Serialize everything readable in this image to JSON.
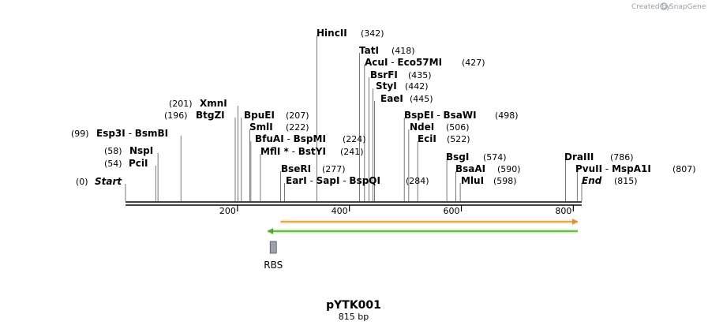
{
  "watermark": {
    "text": "Created by",
    "brand": "SnapGene"
  },
  "map": {
    "name": "pYTK001",
    "length_label": "815 bp",
    "length": 815,
    "ruler_ticks": [
      "200",
      "400",
      "600",
      "800"
    ],
    "tick_values": [
      200,
      400,
      600,
      800
    ]
  },
  "sites": [
    {
      "id": "start",
      "pos": 0,
      "pos_label": "(0)",
      "parts": [
        "Start"
      ],
      "italic": true
    },
    {
      "id": "pcii",
      "pos": 54,
      "pos_label": "(54)",
      "parts": [
        "PciI"
      ]
    },
    {
      "id": "nspi",
      "pos": 58,
      "pos_label": "(58)",
      "parts": [
        "NspI"
      ]
    },
    {
      "id": "esp3i",
      "pos": 99,
      "pos_label": "(99)",
      "parts": [
        "Esp3I",
        "BsmBI"
      ]
    },
    {
      "id": "btgzi",
      "pos": 196,
      "pos_label": "(196)",
      "parts": [
        "BtgZI"
      ]
    },
    {
      "id": "xmni",
      "pos": 201,
      "pos_label": "(201)",
      "parts": [
        "XmnI"
      ]
    },
    {
      "id": "bpuei",
      "pos": 207,
      "pos_label": "(207)",
      "parts": [
        "BpuEI"
      ]
    },
    {
      "id": "smli",
      "pos": 222,
      "pos_label": "(222)",
      "parts": [
        "SmlI"
      ]
    },
    {
      "id": "bfuai",
      "pos": 224,
      "pos_label": "(224)",
      "parts": [
        "BfuAI",
        "BspMI"
      ]
    },
    {
      "id": "mfli",
      "pos": 241,
      "pos_label": "(241)",
      "parts": [
        "MflI *",
        "BstYI"
      ]
    },
    {
      "id": "bseri",
      "pos": 277,
      "pos_label": "(277)",
      "parts": [
        "BseRI"
      ]
    },
    {
      "id": "eari",
      "pos": 284,
      "pos_label": "(284)",
      "parts": [
        "EarI",
        "SapI",
        "BspQI"
      ]
    },
    {
      "id": "hincii",
      "pos": 342,
      "pos_label": "(342)",
      "parts": [
        "HincII"
      ]
    },
    {
      "id": "tati",
      "pos": 418,
      "pos_label": "(418)",
      "parts": [
        "TatI"
      ]
    },
    {
      "id": "acui",
      "pos": 427,
      "pos_label": "(427)",
      "parts": [
        "AcuI",
        "Eco57MI"
      ]
    },
    {
      "id": "bsrfi",
      "pos": 435,
      "pos_label": "(435)",
      "parts": [
        "BsrFI"
      ]
    },
    {
      "id": "styi",
      "pos": 442,
      "pos_label": "(442)",
      "parts": [
        "StyI"
      ]
    },
    {
      "id": "eaei",
      "pos": 445,
      "pos_label": "(445)",
      "parts": [
        "EaeI"
      ]
    },
    {
      "id": "bspei",
      "pos": 498,
      "pos_label": "(498)",
      "parts": [
        "BspEI",
        "BsaWI"
      ]
    },
    {
      "id": "ndei",
      "pos": 506,
      "pos_label": "(506)",
      "parts": [
        "NdeI"
      ]
    },
    {
      "id": "ecii",
      "pos": 522,
      "pos_label": "(522)",
      "parts": [
        "EciI"
      ]
    },
    {
      "id": "bsgi",
      "pos": 574,
      "pos_label": "(574)",
      "parts": [
        "BsgI"
      ]
    },
    {
      "id": "bsaai",
      "pos": 590,
      "pos_label": "(590)",
      "parts": [
        "BsaAI"
      ]
    },
    {
      "id": "mlui",
      "pos": 598,
      "pos_label": "(598)",
      "parts": [
        "MluI"
      ]
    },
    {
      "id": "draiii",
      "pos": 786,
      "pos_label": "(786)",
      "parts": [
        "DraIII"
      ]
    },
    {
      "id": "pvuii",
      "pos": 807,
      "pos_label": "(807)",
      "parts": [
        "PvuII",
        "MspA1I"
      ]
    },
    {
      "id": "end",
      "pos": 815,
      "pos_label": "(815)",
      "parts": [
        "End"
      ],
      "italic": true
    }
  ],
  "features": [
    {
      "id": "orange-arrow",
      "start": 277,
      "end": 808,
      "direction": "forward",
      "color": "#e0902a",
      "fill": "#fbe7c4"
    },
    {
      "id": "green-arrow",
      "start": 254,
      "end": 808,
      "direction": "reverse",
      "color": "#4ea82a",
      "fill": "#cfeec0"
    }
  ],
  "rbs": {
    "label": "RBS",
    "pos": 264,
    "color": "#9aa3ad"
  }
}
